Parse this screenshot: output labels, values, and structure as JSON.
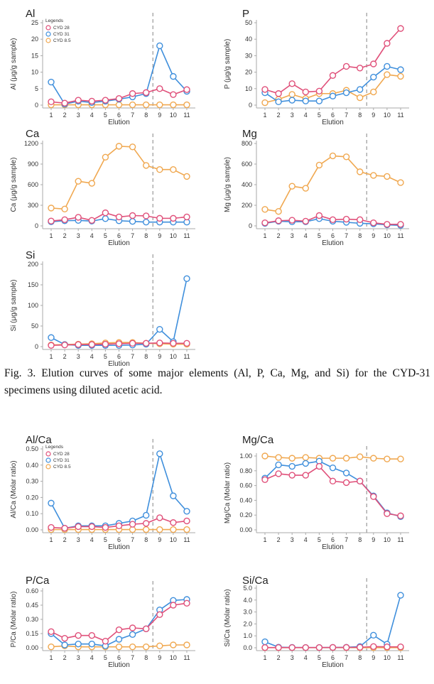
{
  "figure": {
    "caption": "Fig. 3. Elution curves of some major elements (Al, P, Ca, Mg, and Si) for the CYD-31 specimens using diluted acetic acid."
  },
  "legend": {
    "title": "Legends",
    "entries": [
      "CYD 28",
      "CYD 31",
      "CYD 8.5"
    ]
  },
  "colors": {
    "CYD 28": "#e0507a",
    "CYD 31": "#3f8fdc",
    "CYD 8.5": "#f0a850",
    "axis": "#aaaaaa",
    "dashed": "#999999"
  },
  "chart_data": [
    {
      "type": "line",
      "title": "Al",
      "xlabel": "Elution",
      "ylabel": "Al (μg/g sample)",
      "x": [
        1,
        2,
        3,
        4,
        5,
        6,
        7,
        8,
        9,
        10,
        11
      ],
      "ylim": [
        0,
        25
      ],
      "yticks": [
        0,
        5,
        10,
        15,
        20,
        25
      ],
      "ytick_labels": [
        "0",
        "5",
        "10",
        "15",
        "20",
        "25"
      ],
      "divider_after": 8,
      "legend": "top-left",
      "series": [
        {
          "name": "CYD 28",
          "values": [
            1,
            0.6,
            1.5,
            1.2,
            1.5,
            2,
            3.5,
            3.8,
            5,
            3.2,
            4.7
          ]
        },
        {
          "name": "CYD 31",
          "values": [
            7,
            0.3,
            1.2,
            0.8,
            1.2,
            1.8,
            2.5,
            3.5,
            18,
            8.7,
            4.2
          ]
        },
        {
          "name": "CYD 8.5",
          "values": [
            0.1,
            0.1,
            0.1,
            0.1,
            0.1,
            0.1,
            0.1,
            0.1,
            0.1,
            0.1,
            0.1
          ]
        }
      ]
    },
    {
      "type": "line",
      "title": "P",
      "xlabel": "Elution",
      "ylabel": "P (μg/g sample)",
      "x": [
        1,
        2,
        3,
        4,
        5,
        6,
        7,
        8,
        9,
        10,
        11
      ],
      "ylim": [
        0,
        50
      ],
      "yticks": [
        0,
        10,
        20,
        30,
        40,
        50
      ],
      "ytick_labels": [
        "0",
        "10",
        "20",
        "30",
        "40",
        "50"
      ],
      "divider_after": 8,
      "series": [
        {
          "name": "CYD 28",
          "values": [
            9.5,
            7,
            13,
            8,
            8.5,
            18,
            23.5,
            22.5,
            25,
            37.5,
            46.5
          ]
        },
        {
          "name": "CYD 31",
          "values": [
            7.5,
            2,
            3,
            2.5,
            2.5,
            5.5,
            7.5,
            9.5,
            17,
            23.5,
            21.5
          ]
        },
        {
          "name": "CYD 8.5",
          "values": [
            1.5,
            3.5,
            6.5,
            4,
            7,
            7,
            9,
            4.5,
            8,
            18.5,
            17.5
          ]
        }
      ]
    },
    {
      "type": "line",
      "title": "Ca",
      "xlabel": "Elution",
      "ylabel": "Ca (μg/g sample)",
      "x": [
        1,
        2,
        3,
        4,
        5,
        6,
        7,
        8,
        9,
        10,
        11
      ],
      "ylim": [
        0,
        1200
      ],
      "yticks": [
        0,
        300,
        600,
        900,
        1200
      ],
      "ytick_labels": [
        "0",
        "300",
        "600",
        "900",
        "1200"
      ],
      "divider_after": 8,
      "series": [
        {
          "name": "CYD 28",
          "values": [
            70,
            90,
            125,
            80,
            190,
            130,
            150,
            145,
            110,
            110,
            130
          ]
        },
        {
          "name": "CYD 31",
          "values": [
            60,
            75,
            80,
            70,
            105,
            75,
            65,
            55,
            55,
            55,
            55
          ]
        },
        {
          "name": "CYD 8.5",
          "values": [
            260,
            245,
            650,
            620,
            1000,
            1160,
            1150,
            880,
            820,
            820,
            720
          ]
        }
      ]
    },
    {
      "type": "line",
      "title": "Mg",
      "xlabel": "Elution",
      "ylabel": "Mg (μg/g sample)",
      "x": [
        1,
        2,
        3,
        4,
        5,
        6,
        7,
        8,
        9,
        10,
        11
      ],
      "ylim": [
        0,
        800
      ],
      "yticks": [
        0,
        200,
        400,
        600,
        800
      ],
      "ytick_labels": [
        "0",
        "200",
        "400",
        "600",
        "800"
      ],
      "divider_after": 8,
      "series": [
        {
          "name": "CYD 28",
          "values": [
            30,
            50,
            55,
            45,
            100,
            60,
            65,
            60,
            30,
            15,
            15
          ]
        },
        {
          "name": "CYD 31",
          "values": [
            25,
            45,
            40,
            40,
            70,
            45,
            35,
            25,
            20,
            10,
            5
          ]
        },
        {
          "name": "CYD 8.5",
          "values": [
            160,
            140,
            385,
            365,
            590,
            680,
            670,
            525,
            490,
            480,
            420
          ]
        }
      ]
    },
    {
      "type": "line",
      "title": "Si",
      "xlabel": "Elution",
      "ylabel": "Si (μg/g sample)",
      "x": [
        1,
        2,
        3,
        4,
        5,
        6,
        7,
        8,
        9,
        10,
        11
      ],
      "ylim": [
        0,
        200
      ],
      "yticks": [
        0,
        50,
        100,
        150,
        200
      ],
      "ytick_labels": [
        "0",
        "50",
        "100",
        "150",
        "200"
      ],
      "divider_after": 8,
      "series": [
        {
          "name": "CYD 28",
          "values": [
            3,
            4,
            5,
            5,
            6,
            7,
            8,
            8,
            9,
            8,
            8
          ]
        },
        {
          "name": "CYD 31",
          "values": [
            22,
            5,
            3,
            3,
            3,
            3,
            4,
            6,
            42,
            12,
            165
          ]
        },
        {
          "name": "CYD 8.5",
          "values": [
            4,
            5,
            6,
            7,
            9,
            10,
            10,
            8,
            7,
            6,
            6
          ]
        }
      ]
    },
    {
      "type": "line",
      "title": "Al/Ca",
      "xlabel": "Elution",
      "ylabel": "Al/Ca (Molar ratio)",
      "x": [
        1,
        2,
        3,
        4,
        5,
        6,
        7,
        8,
        9,
        10,
        11
      ],
      "ylim": [
        0,
        0.5
      ],
      "yticks": [
        0,
        0.1,
        0.2,
        0.3,
        0.4,
        0.5
      ],
      "ytick_labels": [
        "0.00",
        "0.10",
        "0.20",
        "0.30",
        "0.40",
        "0.50"
      ],
      "divider_after": 8,
      "legend": "top-left",
      "series": [
        {
          "name": "CYD 28",
          "values": [
            0.015,
            0.01,
            0.02,
            0.02,
            0.015,
            0.025,
            0.035,
            0.04,
            0.075,
            0.045,
            0.055
          ]
        },
        {
          "name": "CYD 31",
          "values": [
            0.165,
            0.01,
            0.025,
            0.025,
            0.025,
            0.04,
            0.055,
            0.09,
            0.47,
            0.21,
            0.115
          ]
        },
        {
          "name": "CYD 8.5",
          "values": [
            0.002,
            0.002,
            0.002,
            0.002,
            0.002,
            0.002,
            0.002,
            0.002,
            0.002,
            0.002,
            0.002
          ]
        }
      ]
    },
    {
      "type": "line",
      "title": "Mg/Ca",
      "xlabel": "Elution",
      "ylabel": "Mg/Ca (Molar ratio)",
      "x": [
        1,
        2,
        3,
        4,
        5,
        6,
        7,
        8,
        9,
        10,
        11
      ],
      "ylim": [
        0,
        1
      ],
      "yticks": [
        0,
        0.2,
        0.4,
        0.6,
        0.8,
        1
      ],
      "ytick_labels": [
        "0.00",
        "0.20",
        "0.40",
        "0.60",
        "0.80",
        "1.00"
      ],
      "divider_after": 8,
      "series": [
        {
          "name": "CYD 28",
          "values": [
            0.68,
            0.76,
            0.74,
            0.74,
            0.86,
            0.66,
            0.64,
            0.66,
            0.45,
            0.22,
            0.19
          ]
        },
        {
          "name": "CYD 31",
          "values": [
            0.7,
            0.88,
            0.86,
            0.9,
            0.93,
            0.84,
            0.77,
            0.66,
            0.46,
            0.23,
            0.18
          ]
        },
        {
          "name": "CYD 8.5",
          "values": [
            1,
            0.98,
            0.97,
            0.98,
            0.97,
            0.97,
            0.97,
            0.99,
            0.97,
            0.96,
            0.96
          ]
        }
      ]
    },
    {
      "type": "line",
      "title": "P/Ca",
      "xlabel": "Elution",
      "ylabel": "P/Ca (Molar ratio)",
      "x": [
        1,
        2,
        3,
        4,
        5,
        6,
        7,
        8,
        9,
        10,
        11
      ],
      "ylim": [
        0,
        0.6
      ],
      "yticks": [
        0,
        0.15,
        0.3,
        0.45,
        0.6
      ],
      "ytick_labels": [
        "0.00",
        "0.15",
        "0.30",
        "0.45",
        "0.60"
      ],
      "divider_after": 8,
      "series": [
        {
          "name": "CYD 28",
          "values": [
            0.17,
            0.1,
            0.13,
            0.13,
            0.07,
            0.19,
            0.21,
            0.2,
            0.35,
            0.45,
            0.47
          ]
        },
        {
          "name": "CYD 31",
          "values": [
            0.15,
            0.03,
            0.04,
            0.04,
            0.02,
            0.09,
            0.14,
            0.2,
            0.4,
            0.5,
            0.51
          ]
        },
        {
          "name": "CYD 8.5",
          "values": [
            0.01,
            0.02,
            0.01,
            0.01,
            0.01,
            0.01,
            0.01,
            0.01,
            0.02,
            0.03,
            0.03
          ]
        }
      ]
    },
    {
      "type": "line",
      "title": "Si/Ca",
      "xlabel": "Elution",
      "ylabel": "Si/Ca (Molar ratio)",
      "x": [
        1,
        2,
        3,
        4,
        5,
        6,
        7,
        8,
        9,
        10,
        11
      ],
      "ylim": [
        0,
        5
      ],
      "yticks": [
        0,
        1,
        2,
        3,
        4,
        5
      ],
      "ytick_labels": [
        "0.0",
        "1.0",
        "2.0",
        "3.0",
        "4.0",
        "5.0"
      ],
      "divider_after": 8,
      "series": [
        {
          "name": "CYD 28",
          "values": [
            0.02,
            0.02,
            0.02,
            0.02,
            0.02,
            0.03,
            0.03,
            0.04,
            0.1,
            0.08,
            0.08
          ]
        },
        {
          "name": "CYD 31",
          "values": [
            0.5,
            0.05,
            0.03,
            0.02,
            0.02,
            0.03,
            0.04,
            0.1,
            1.05,
            0.3,
            4.4
          ]
        },
        {
          "name": "CYD 8.5",
          "values": [
            0.01,
            0.01,
            0.01,
            0.01,
            0.01,
            0.01,
            0.01,
            0.01,
            0.01,
            0.01,
            0.01
          ]
        }
      ]
    }
  ]
}
